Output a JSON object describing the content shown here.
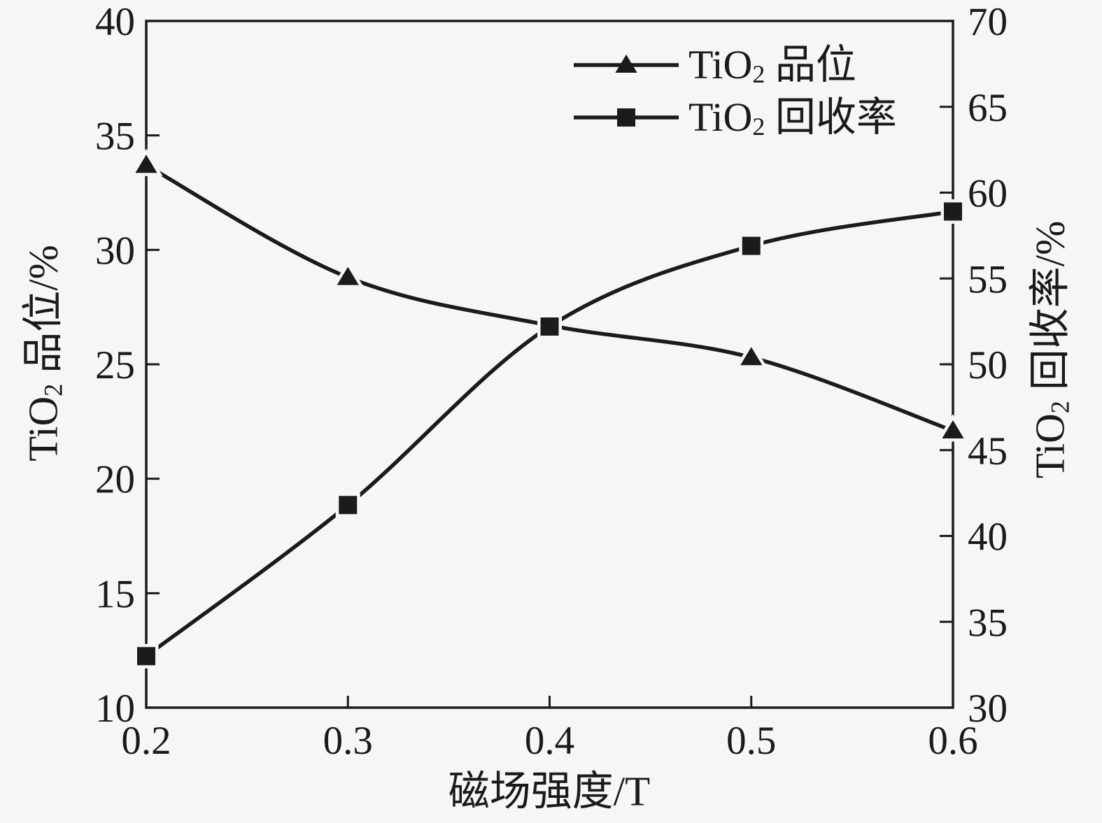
{
  "page": {
    "background": "#f6f6f5",
    "ink_color": "#1a1a1a"
  },
  "chart_data": {
    "type": "line",
    "x": [
      0.2,
      0.3,
      0.4,
      0.5,
      0.6
    ],
    "x_tick_labels": [
      "0.2",
      "0.3",
      "0.4",
      "0.5",
      "0.6"
    ],
    "xlabel": "磁场强度/T",
    "xlim": [
      0.2,
      0.6
    ],
    "grid": "off",
    "legend_position": "top-right-inside",
    "left_axis": {
      "label": "TiO2 品位/%",
      "min": 10,
      "max": 40,
      "ticks": [
        10,
        15,
        20,
        25,
        30,
        35,
        40
      ]
    },
    "right_axis": {
      "label": "TiO2 回收率/%",
      "min": 30,
      "max": 70,
      "ticks": [
        30,
        35,
        40,
        45,
        50,
        55,
        60,
        65,
        70
      ]
    },
    "series": [
      {
        "name": "TiO2 品位",
        "axis": "left",
        "marker": "triangle",
        "values": [
          33.7,
          28.8,
          26.7,
          25.3,
          22.1
        ]
      },
      {
        "name": "TiO2 回收率",
        "axis": "right",
        "marker": "square",
        "values": [
          33.0,
          41.8,
          52.2,
          56.9,
          58.9
        ]
      }
    ],
    "line_color": "#1b1b1b"
  },
  "axis_titles": {
    "left": {
      "prefix": "TiO",
      "sub": "2",
      "suffix": " 品位/%"
    },
    "right": {
      "prefix": "TiO",
      "sub": "2",
      "suffix": " 回收率/%"
    },
    "bottom": "磁场强度/T"
  },
  "legend": {
    "items": [
      {
        "prefix": "TiO",
        "sub": "2",
        "suffix": " 品位",
        "marker": "triangle"
      },
      {
        "prefix": "TiO",
        "sub": "2",
        "suffix": " 回收率",
        "marker": "square"
      }
    ]
  }
}
